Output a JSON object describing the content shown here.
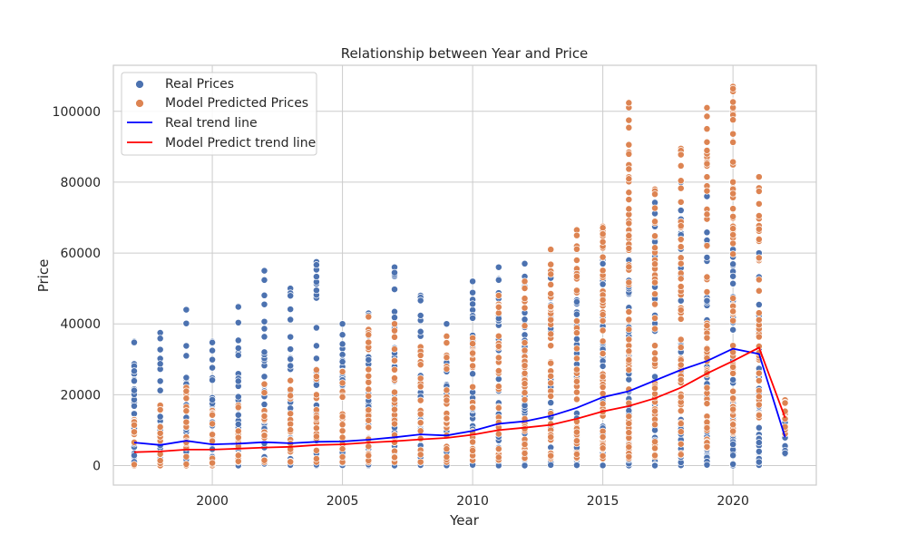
{
  "chart_data": {
    "type": "scatter",
    "title": "Relationship between Year and Price",
    "xlabel": "Year",
    "ylabel": "Price",
    "xlim": [
      1996.2,
      2023.2
    ],
    "ylim": [
      -5500,
      113000
    ],
    "x_ticks": [
      2000,
      2005,
      2010,
      2015,
      2020
    ],
    "y_ticks": [
      0,
      20000,
      40000,
      60000,
      80000,
      100000
    ],
    "grid": true,
    "legend_position": "top-left",
    "colors": {
      "real_points": "#4C72B0",
      "predicted_points": "#DD8452",
      "real_trend": "#0000FF",
      "predicted_trend": "#FF0000",
      "grid": "#CCCCCC",
      "axes_edge": "#CCCCCC"
    },
    "legend": [
      {
        "label": "Real Prices",
        "kind": "marker",
        "color": "#4C72B0"
      },
      {
        "label": "Model Predicted Prices",
        "kind": "marker",
        "color": "#DD8452"
      },
      {
        "label": "Real trend line",
        "kind": "line",
        "color": "#0000FF"
      },
      {
        "label": "Model Predict trend line",
        "kind": "line",
        "color": "#FF0000"
      }
    ],
    "years": [
      1997,
      1998,
      1999,
      2000,
      2001,
      2002,
      2003,
      2004,
      2005,
      2006,
      2007,
      2008,
      2009,
      2010,
      2011,
      2012,
      2013,
      2014,
      2015,
      2016,
      2017,
      2018,
      2019,
      2020,
      2021,
      2022
    ],
    "real_price_range": {
      "min": [
        0,
        0,
        0,
        0,
        0,
        500,
        0,
        0,
        0,
        0,
        0,
        0,
        0,
        0,
        0,
        0,
        0,
        0,
        0,
        0,
        0,
        0,
        0,
        0,
        0,
        3200
      ],
      "max": [
        35000,
        37500,
        44000,
        35000,
        45000,
        55000,
        50000,
        57500,
        40000,
        43000,
        56000,
        48000,
        40000,
        52000,
        56000,
        57000,
        55000,
        55000,
        58000,
        58000,
        78000,
        80000,
        76000,
        61000,
        60000,
        12500
      ],
      "outliers": [
        [
          2022,
          3500
        ],
        [
          2022,
          12200
        ],
        [
          2021,
          1000
        ],
        [
          2021,
          6500
        ],
        [
          2020,
          6000
        ],
        [
          2019,
          4500
        ]
      ]
    },
    "predicted_price_range": {
      "min": [
        0,
        0,
        0,
        0,
        1000,
        1000,
        1000,
        1000,
        1000,
        1000,
        1000,
        1000,
        1000,
        1500,
        1500,
        2000,
        2000,
        2000,
        2000,
        2000,
        2500,
        3000,
        5000,
        9000,
        13500,
        9000
      ],
      "max": [
        13000,
        17000,
        22000,
        15500,
        17000,
        23000,
        24000,
        27000,
        26500,
        42000,
        40000,
        33500,
        36500,
        36000,
        48000,
        52000,
        61000,
        66500,
        67500,
        102500,
        78000,
        89500,
        101000,
        107000,
        81500,
        18500
      ]
    },
    "real_trend_line": [
      6500,
      5800,
      7000,
      6000,
      6200,
      6600,
      6300,
      6700,
      6800,
      7300,
      8000,
      8800,
      8500,
      9800,
      11800,
      12500,
      14000,
      16300,
      19300,
      21000,
      24000,
      27000,
      29500,
      33000,
      31500,
      8000
    ],
    "predicted_trend_line": [
      3800,
      4000,
      4500,
      4500,
      4800,
      5100,
      5300,
      5800,
      6000,
      6500,
      6900,
      7400,
      7800,
      8700,
      10000,
      10700,
      11500,
      13200,
      15300,
      16800,
      19000,
      22000,
      26000,
      29500,
      33300,
      13500
    ]
  }
}
